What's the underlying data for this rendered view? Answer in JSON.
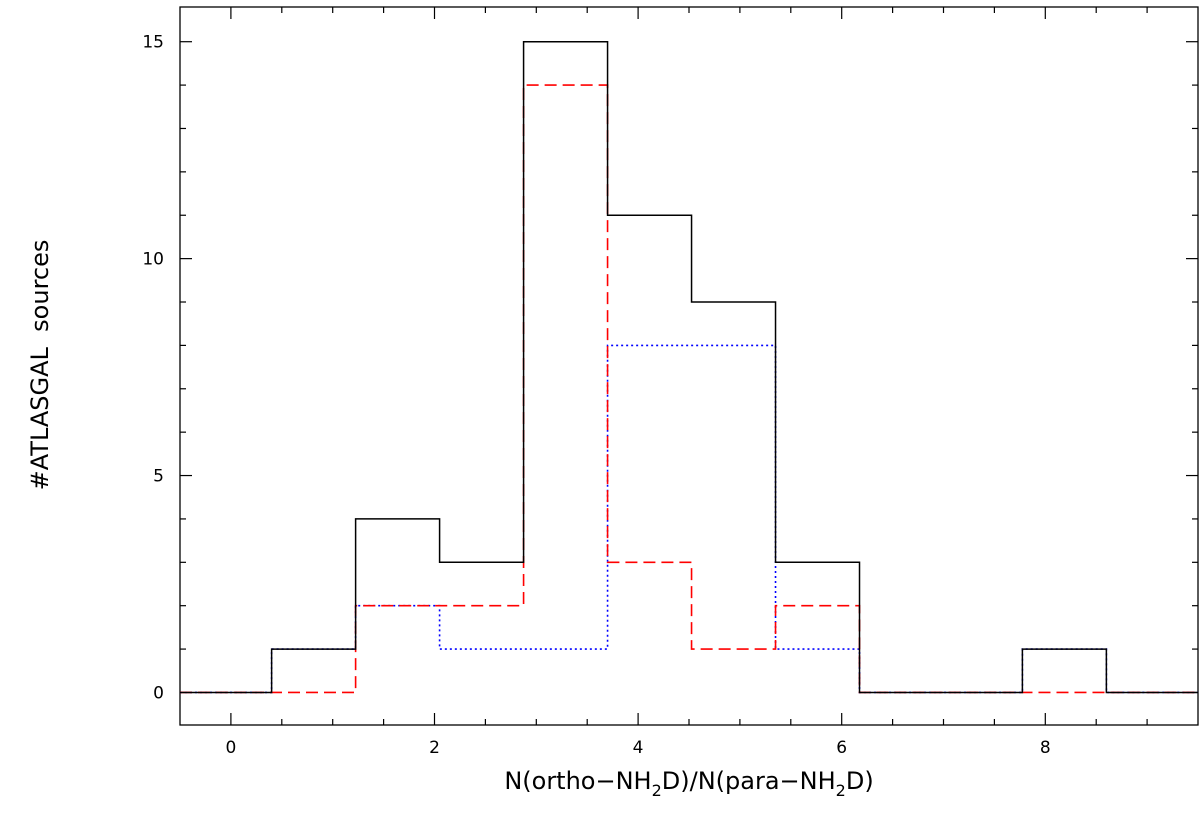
{
  "chart_data": {
    "type": "histogram",
    "xlabel_parts": [
      "N(ortho−NH",
      "2",
      "D)/N(para−NH",
      "2",
      "D)"
    ],
    "ylabel": "#ATLASGAL  sources",
    "xlim": [
      -0.5,
      9.5
    ],
    "ylim": [
      -0.75,
      15.8
    ],
    "x_ticks": [
      0,
      2,
      4,
      6,
      8
    ],
    "y_ticks": [
      0,
      5,
      10,
      15
    ],
    "grid": false,
    "bin_edges": [
      -0.5,
      0.4,
      1.225,
      2.05,
      2.875,
      3.7,
      4.525,
      5.35,
      6.175,
      7.0,
      7.775,
      8.6,
      9.5
    ],
    "series": [
      {
        "style": "solid",
        "color": "#000000",
        "values": [
          0,
          1,
          4,
          3,
          15,
          11,
          9,
          3,
          0,
          0,
          1,
          0
        ]
      },
      {
        "style": "dashed",
        "color": "#ff0000",
        "values": [
          0,
          0,
          2,
          2,
          14,
          3,
          1,
          2,
          0,
          0,
          0,
          0
        ]
      },
      {
        "style": "dotted",
        "color": "#0000ff",
        "values": [
          0,
          1,
          2,
          1,
          1,
          8,
          8,
          1,
          0,
          0,
          1,
          0
        ]
      }
    ]
  }
}
